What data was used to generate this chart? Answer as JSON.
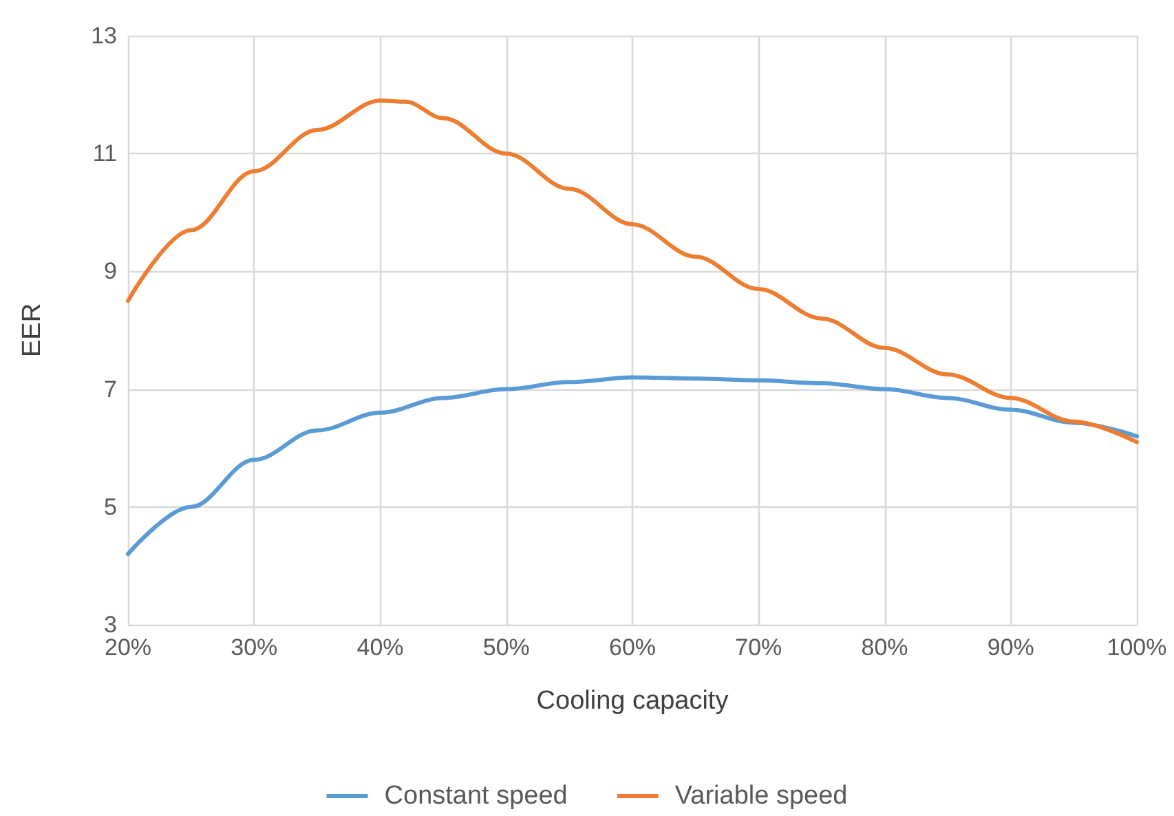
{
  "chart_data": {
    "type": "line",
    "xlabel": "Cooling capacity",
    "ylabel": "EER",
    "series": [
      {
        "name": "Constant speed",
        "color": "#5b9bd5",
        "x": [
          20,
          25,
          30,
          35,
          40,
          45,
          50,
          55,
          60,
          65,
          70,
          75,
          80,
          85,
          90,
          95,
          100
        ],
        "values": [
          4.2,
          5.0,
          5.8,
          6.3,
          6.6,
          6.85,
          7.0,
          7.12,
          7.2,
          7.18,
          7.15,
          7.1,
          7.0,
          6.85,
          6.65,
          6.43,
          6.2
        ]
      },
      {
        "name": "Variable speed",
        "color": "#ed7d31",
        "x": [
          20,
          25,
          30,
          35,
          40,
          42,
          45,
          50,
          55,
          60,
          65,
          70,
          75,
          80,
          85,
          90,
          95,
          100
        ],
        "values": [
          8.5,
          9.7,
          10.7,
          11.4,
          11.9,
          11.88,
          11.6,
          11.0,
          10.4,
          9.8,
          9.25,
          8.7,
          8.2,
          7.7,
          7.25,
          6.85,
          6.45,
          6.1
        ]
      }
    ],
    "xlim": [
      20,
      100
    ],
    "xticks": [
      {
        "value": 20,
        "label": "20%"
      },
      {
        "value": 30,
        "label": "30%"
      },
      {
        "value": 40,
        "label": "40%"
      },
      {
        "value": 50,
        "label": "50%"
      },
      {
        "value": 60,
        "label": "60%"
      },
      {
        "value": 70,
        "label": "70%"
      },
      {
        "value": 80,
        "label": "80%"
      },
      {
        "value": 90,
        "label": "90%"
      },
      {
        "value": 100,
        "label": "100%"
      }
    ],
    "ylim": [
      3,
      13
    ],
    "yticks": [
      3,
      5,
      7,
      9,
      11,
      13
    ],
    "grid": true,
    "legend": "bottom",
    "marker": "none",
    "line_style": "solid"
  }
}
